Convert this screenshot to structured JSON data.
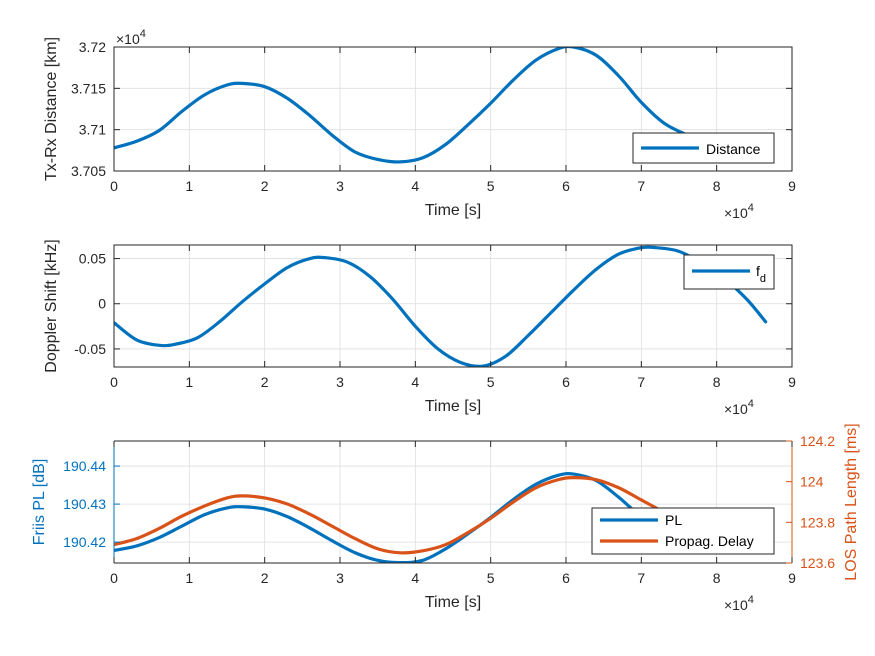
{
  "colors": {
    "blue": "#0072BD",
    "orange": "#D95319",
    "axis": "#262626"
  },
  "chart_data": [
    {
      "type": "line",
      "xlabel": "Time [s]",
      "ylabel": "Tx-Rx Distance [km]",
      "x_exponent_label": "×10",
      "x_exponent": "4",
      "y_exponent_label": "×10",
      "y_exponent": "4",
      "xlim": [
        0,
        9
      ],
      "ylim": [
        3.705,
        3.72
      ],
      "xticks": [
        "0",
        "1",
        "2",
        "3",
        "4",
        "5",
        "6",
        "7",
        "8",
        "9"
      ],
      "yticks": [
        "3.705",
        "3.71",
        "3.715",
        "3.72"
      ],
      "legend": {
        "position": "lower-right",
        "entries": [
          "Distance"
        ]
      },
      "series": [
        {
          "name": "Distance",
          "color": "#0072BD",
          "x": [
            0,
            0.3,
            0.6,
            0.9,
            1.2,
            1.5,
            1.7,
            2.0,
            2.3,
            2.6,
            2.9,
            3.2,
            3.5,
            3.8,
            4.1,
            4.4,
            4.7,
            5.0,
            5.3,
            5.6,
            5.9,
            6.1,
            6.4,
            6.7,
            7.0,
            7.3,
            7.6,
            7.9,
            8.2,
            8.5
          ],
          "y": [
            3.7078,
            3.7086,
            3.7099,
            3.7122,
            3.7142,
            3.7154,
            3.7156,
            3.7152,
            3.7138,
            3.7117,
            3.7093,
            3.7073,
            3.7064,
            3.7061,
            3.7066,
            3.7082,
            3.7106,
            3.7132,
            3.716,
            3.7184,
            3.7198,
            3.72,
            3.719,
            3.7165,
            3.7133,
            3.7108,
            3.7094,
            3.7084,
            3.7083,
            3.7085
          ]
        }
      ]
    },
    {
      "type": "line",
      "xlabel": "Time [s]",
      "ylabel": "Doppler Shift [kHz]",
      "x_exponent_label": "×10",
      "x_exponent": "4",
      "xlim": [
        0,
        9
      ],
      "ylim": [
        -0.07,
        0.065
      ],
      "xticks": [
        "0",
        "1",
        "2",
        "3",
        "4",
        "5",
        "6",
        "7",
        "8",
        "9"
      ],
      "yticks": [
        "-0.05",
        "0",
        "0.05"
      ],
      "legend": {
        "position": "top-right",
        "entries": [
          "f",
          "d"
        ]
      },
      "series": [
        {
          "name": "f_d",
          "color": "#0072BD",
          "x": [
            0,
            0.3,
            0.6,
            0.8,
            1.1,
            1.4,
            1.7,
            2.0,
            2.3,
            2.6,
            2.8,
            3.1,
            3.4,
            3.7,
            4.0,
            4.3,
            4.6,
            4.9,
            5.2,
            5.5,
            5.8,
            6.1,
            6.4,
            6.7,
            7.0,
            7.2,
            7.5,
            7.8,
            8.1,
            8.4,
            8.65
          ],
          "y": [
            -0.021,
            -0.04,
            -0.046,
            -0.045,
            -0.038,
            -0.02,
            0.002,
            0.022,
            0.04,
            0.05,
            0.051,
            0.046,
            0.03,
            0.005,
            -0.025,
            -0.05,
            -0.065,
            -0.069,
            -0.058,
            -0.035,
            -0.01,
            0.015,
            0.038,
            0.055,
            0.062,
            0.062,
            0.058,
            0.045,
            0.028,
            0.005,
            -0.02
          ]
        }
      ]
    },
    {
      "type": "line",
      "xlabel": "Time [s]",
      "ylabel": "Friis PL [dB]",
      "y2label": "LOS Path Length [ms]",
      "x_exponent_label": "×10",
      "x_exponent": "4",
      "xlim": [
        0,
        9
      ],
      "ylim": [
        190.4145,
        190.4466
      ],
      "y2lim": [
        123.6,
        124.2
      ],
      "xticks": [
        "0",
        "1",
        "2",
        "3",
        "4",
        "5",
        "6",
        "7",
        "8",
        "9"
      ],
      "yticks": [
        "190.42",
        "190.43",
        "190.44"
      ],
      "y2ticks": [
        "123.6",
        "123.8",
        "124",
        "124.2"
      ],
      "legend": {
        "position": "lower-right",
        "entries": [
          "PL",
          "Propag. Delay"
        ]
      },
      "series": [
        {
          "name": "PL",
          "color": "#0072BD",
          "axis": "left",
          "x": [
            0,
            0.3,
            0.6,
            0.9,
            1.2,
            1.5,
            1.7,
            2.0,
            2.3,
            2.6,
            2.9,
            3.2,
            3.5,
            3.8,
            4.1,
            4.4,
            4.7,
            5.0,
            5.3,
            5.6,
            5.9,
            6.1,
            6.4,
            6.7,
            7.0,
            7.3,
            7.6,
            7.9,
            8.2,
            8.5
          ],
          "y": [
            190.4178,
            190.419,
            190.4212,
            190.4242,
            190.4272,
            190.429,
            190.4293,
            190.4287,
            190.4267,
            190.4237,
            190.4203,
            190.4172,
            190.4152,
            190.4146,
            190.4152,
            190.4182,
            190.4222,
            190.4265,
            190.4312,
            190.4352,
            190.4376,
            190.4379,
            190.4362,
            190.4318,
            190.4266,
            190.4228,
            190.4208,
            190.4195,
            190.4193,
            190.4196
          ]
        },
        {
          "name": "Propag. Delay",
          "color": "#D95319",
          "axis": "right",
          "x": [
            0,
            0.3,
            0.6,
            0.9,
            1.2,
            1.5,
            1.7,
            2.0,
            2.3,
            2.6,
            2.9,
            3.2,
            3.5,
            3.8,
            4.1,
            4.4,
            4.7,
            5.0,
            5.3,
            5.6,
            5.9,
            6.1,
            6.4,
            6.7,
            7.0,
            7.3
          ],
          "y": [
            123.69,
            123.72,
            123.77,
            123.83,
            123.88,
            123.92,
            123.93,
            123.92,
            123.89,
            123.84,
            123.78,
            123.72,
            123.67,
            123.65,
            123.66,
            123.69,
            123.75,
            123.82,
            123.9,
            123.97,
            124.01,
            124.02,
            124.01,
            123.97,
            123.91,
            123.85
          ]
        }
      ]
    }
  ]
}
